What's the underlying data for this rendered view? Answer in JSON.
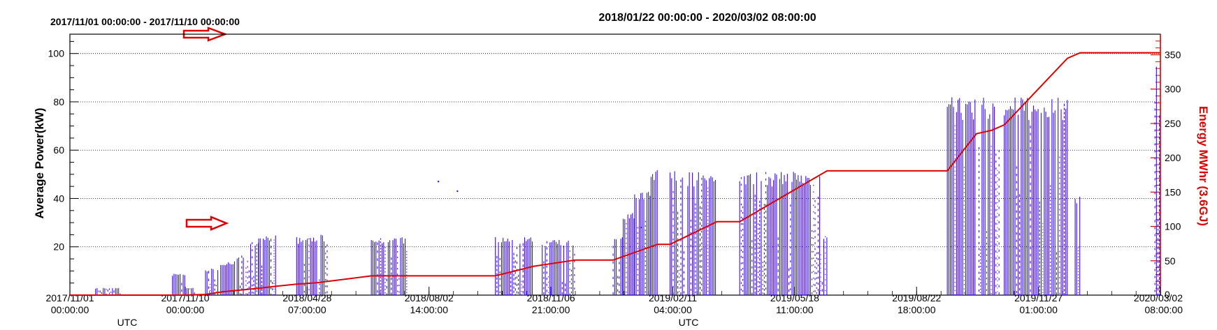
{
  "chart_data": [
    {
      "type": "line",
      "title": "2017/11/01 00:00:00 - 2017/11/10 00:00:00",
      "ylabel": "Average Power(kW)",
      "xlabel": "UTC",
      "x_ticks": [
        "2017/11/01\n00:00:00",
        "2017/11/10\n00:00:00"
      ],
      "y_ticks": [
        "20",
        "40",
        "60",
        "80",
        "100"
      ],
      "ylim": [
        0,
        108
      ],
      "power_segments": [
        {
          "x": [
            "2017/11/03",
            "2017/11/05"
          ],
          "y_range": [
            0,
            3
          ]
        },
        {
          "x": [
            "2017/11/09",
            "2017/11/10"
          ],
          "y_range": [
            0,
            9
          ]
        }
      ],
      "energy_line": {
        "name": "Energy MWhr (3.6GJ)",
        "y": [
          0,
          0,
          1
        ]
      }
    },
    {
      "type": "line",
      "title": "2018/01/22 00:00:00 - 2020/03/02 08:00:00",
      "ylabel": "Average Power(kW)",
      "y2label": "Energy MWhr (3.6GJ)",
      "xlabel": "UTC",
      "x_ticks": [
        "2018/04/28\n07:00:00",
        "2018/08/02\n14:00:00",
        "2018/11/06\n21:00:00",
        "2019/02/11\n04:00:00",
        "2019/05/18\n11:00:00",
        "2019/08/22\n18:00:00",
        "2019/11/27\n01:00:00",
        "2020/03/02\n08:00:00"
      ],
      "x_tick_days": [
        96.29,
        192.58,
        288.88,
        385.17,
        481.46,
        577.75,
        674.04,
        770.33
      ],
      "xlim_days": [
        0,
        770.33
      ],
      "ylim": [
        0,
        108
      ],
      "y2lim": [
        0,
        380
      ],
      "y2_ticks": [
        "50",
        "100",
        "150",
        "200",
        "250",
        "300",
        "350"
      ],
      "grid": "horizontal dotted",
      "power_segments": [
        {
          "x": [
            0,
            8
          ],
          "y_range": [
            0,
            3
          ]
        },
        {
          "x": [
            16,
            26
          ],
          "y_range": [
            0,
            11
          ]
        },
        {
          "x": [
            28,
            40
          ],
          "y_range": [
            0,
            14
          ]
        },
        {
          "x": [
            41,
            46
          ],
          "y_range": [
            0,
            17
          ]
        },
        {
          "x": [
            48,
            58
          ],
          "y_range": [
            0,
            22
          ]
        },
        {
          "x": [
            58,
            72
          ],
          "y_range": [
            0,
            25
          ]
        },
        {
          "x": [
            88,
            104
          ],
          "y_range": [
            0,
            24
          ]
        },
        {
          "x": [
            106,
            113
          ],
          "y_range": [
            0,
            25
          ]
        },
        {
          "x": [
            147,
            175
          ],
          "y_range": [
            0,
            24
          ]
        },
        {
          "x": [
            245,
            275
          ],
          "y_range": [
            0,
            24
          ]
        },
        {
          "x": [
            282,
            308
          ],
          "y_range": [
            0,
            23
          ]
        },
        {
          "x": [
            338,
            346
          ],
          "y_range": [
            0,
            24
          ]
        },
        {
          "x": [
            346,
            355
          ],
          "y_range": [
            0,
            35
          ]
        },
        {
          "x": [
            355,
            368
          ],
          "y_range": [
            0,
            43
          ]
        },
        {
          "x": [
            368,
            373
          ],
          "y_range": [
            0,
            53
          ]
        },
        {
          "x": [
            383,
            395
          ],
          "y_range": [
            0,
            52
          ]
        },
        {
          "x": [
            397,
            420
          ],
          "y_range": [
            0,
            51
          ]
        },
        {
          "x": [
            438,
            502
          ],
          "y_range": [
            0,
            51
          ]
        },
        {
          "x": [
            502,
            507
          ],
          "y_range": [
            0,
            26
          ]
        },
        {
          "x": [
            602,
            625
          ],
          "y_range": [
            0,
            82
          ]
        },
        {
          "x": [
            627,
            637
          ],
          "y_range": [
            0,
            82
          ]
        },
        {
          "x": [
            638,
            643
          ],
          "y_range": [
            0,
            82
          ]
        },
        {
          "x": [
            647,
            697
          ],
          "y_range": [
            0,
            82
          ]
        },
        {
          "x": [
            703,
            707
          ],
          "y_range": [
            0,
            41
          ]
        },
        {
          "x": [
            766,
            770
          ],
          "y_range": [
            0,
            102
          ]
        }
      ],
      "energy_line": {
        "name": "Energy MWhr (3.6GJ)",
        "x": [
          0,
          16,
          30,
          58,
          72,
          88,
          104,
          147,
          175,
          245,
          275,
          308,
          338,
          373,
          383,
          420,
          438,
          507,
          602,
          625,
          637,
          647,
          697,
          707,
          770
        ],
        "y": [
          0,
          1,
          5,
          10,
          13,
          16,
          18,
          28,
          28,
          28,
          42,
          51,
          51,
          74,
          74,
          107,
          107,
          181,
          181,
          235,
          240,
          248,
          345,
          353,
          353
        ]
      }
    }
  ],
  "colors": {
    "power": "#3a10e8",
    "energy": "#dd0000",
    "arrow": "#dd0000",
    "grid": "#000000"
  }
}
